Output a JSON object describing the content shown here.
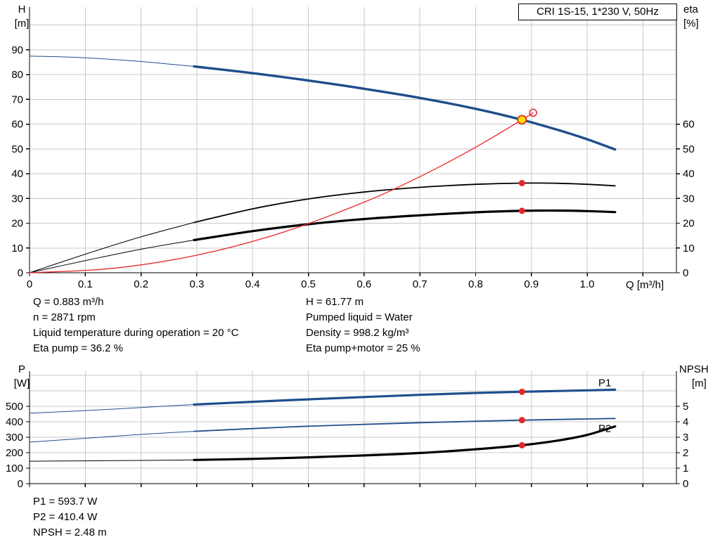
{
  "title_box": "CRI 1S-15, 1*230 V, 50Hz",
  "info": {
    "col1": [
      "Q = 0.883 m³/h",
      "n = 2871 rpm",
      "Liquid temperature during operation = 20 °C",
      "Eta pump = 36.2 %"
    ],
    "col2": [
      "H = 61.77 m",
      "Pumped liquid = Water",
      "Density = 998.2 kg/m³",
      "Eta pump+motor = 25 %"
    ]
  },
  "footer": [
    "P1 = 593.7 W",
    "P2 = 410.4 W",
    "NPSH = 2.48 m"
  ],
  "colors": {
    "curve_blue": "#1f4e8c",
    "marker_red": "#e8262a",
    "duty_yellow": "#ffe100",
    "grid": "#c8c8c8",
    "axis": "#000000"
  },
  "chart_data": [
    {
      "id": "top",
      "type": "line",
      "title": "CRI 1S-15, 1*230 V, 50Hz",
      "xlabel": "Q [m³/h]",
      "ylabel_left": [
        "H",
        "[m]"
      ],
      "ylabel_right": [
        "eta",
        "[%]"
      ],
      "xlim": [
        0,
        1.16
      ],
      "ylim_left": [
        0,
        107.3
      ],
      "ylim_right": [
        0,
        107.3
      ],
      "xticks": [
        "0",
        "0.1",
        "0.2",
        "0.3",
        "0.4",
        "0.5",
        "0.6",
        "0.7",
        "0.8",
        "0.9",
        "1.0"
      ],
      "xgrid": [
        0.1,
        0.2,
        0.3,
        0.4,
        0.5,
        0.6,
        0.7,
        0.8,
        0.9,
        1.0,
        1.1
      ],
      "yticks_left": [
        0,
        10,
        20,
        30,
        40,
        50,
        60,
        70,
        80,
        90
      ],
      "yticks_right": [
        0,
        10,
        20,
        30,
        40,
        50,
        60
      ],
      "ygrid": [
        10,
        20,
        30,
        40,
        50,
        60,
        70,
        80,
        90,
        100
      ],
      "series": [
        {
          "name": "head-curve",
          "label": "H",
          "axis": "left",
          "color": "#1f4e8c",
          "width": 3.4,
          "thin_until": 0.295,
          "thin_width": 1,
          "points": [
            [
              0,
              87.5
            ],
            [
              0.1,
              86.8
            ],
            [
              0.2,
              85.3
            ],
            [
              0.295,
              83.3
            ],
            [
              0.4,
              80.6
            ],
            [
              0.5,
              77.6
            ],
            [
              0.6,
              74.3
            ],
            [
              0.7,
              70.6
            ],
            [
              0.8,
              66.2
            ],
            [
              0.883,
              61.77
            ],
            [
              0.95,
              57.5
            ],
            [
              1.0,
              53.9
            ],
            [
              1.05,
              49.8
            ]
          ]
        },
        {
          "name": "eta-pump-curve",
          "label": "Eta pump",
          "axis": "right",
          "color": "#000000",
          "width": 1.8,
          "thin_until": 0.295,
          "thin_width": 1,
          "points": [
            [
              0,
              0
            ],
            [
              0.1,
              7.5
            ],
            [
              0.2,
              14.5
            ],
            [
              0.295,
              20.3
            ],
            [
              0.4,
              25.8
            ],
            [
              0.5,
              29.8
            ],
            [
              0.6,
              32.6
            ],
            [
              0.7,
              34.5
            ],
            [
              0.8,
              35.7
            ],
            [
              0.883,
              36.2
            ],
            [
              0.95,
              36.1
            ],
            [
              1.0,
              35.7
            ],
            [
              1.05,
              35.1
            ]
          ]
        },
        {
          "name": "eta-pump-motor-curve",
          "label": "Eta pump+motor",
          "axis": "right",
          "color": "#000000",
          "width": 3.2,
          "thin_until": 0.295,
          "thin_width": 1,
          "points": [
            [
              0,
              0
            ],
            [
              0.1,
              4.9
            ],
            [
              0.2,
              9.5
            ],
            [
              0.295,
              13.2
            ],
            [
              0.4,
              16.8
            ],
            [
              0.5,
              19.6
            ],
            [
              0.6,
              21.7
            ],
            [
              0.7,
              23.2
            ],
            [
              0.8,
              24.4
            ],
            [
              0.883,
              25.0
            ],
            [
              0.95,
              25.1
            ],
            [
              1.0,
              24.9
            ],
            [
              1.05,
              24.5
            ]
          ]
        },
        {
          "name": "system-curve",
          "label": "Duty curve",
          "axis": "left",
          "color": "#e8262a",
          "width": 1.3,
          "points": [
            [
              0,
              0
            ],
            [
              0.15,
              1.8
            ],
            [
              0.3,
              7.1
            ],
            [
              0.45,
              16.0
            ],
            [
              0.6,
              28.5
            ],
            [
              0.7,
              38.8
            ],
            [
              0.8,
              50.7
            ],
            [
              0.883,
              61.77
            ],
            [
              0.903,
              64.6
            ]
          ]
        }
      ],
      "markers": [
        {
          "name": "duty-point-marker",
          "x": 0.883,
          "y": 61.77,
          "axis": "left",
          "r": 6,
          "fill": "#ffe100",
          "stroke": "#e8262a",
          "stroke_width": 1.8
        },
        {
          "name": "rated-point-marker",
          "x": 0.903,
          "y": 64.6,
          "axis": "left",
          "r": 5,
          "fill": "none",
          "stroke": "#e8262a",
          "stroke_width": 1.5
        },
        {
          "name": "eta-pump-point",
          "x": 0.883,
          "y": 36.2,
          "axis": "right",
          "r": 4.5,
          "fill": "#e8262a",
          "stroke": "none",
          "stroke_width": 0
        },
        {
          "name": "eta-pump-motor-point",
          "x": 0.883,
          "y": 25,
          "axis": "right",
          "r": 4.5,
          "fill": "#e8262a",
          "stroke": "none",
          "stroke_width": 0
        }
      ],
      "labels": []
    },
    {
      "id": "bottom",
      "type": "line",
      "xlabel": "",
      "ylabel_left": [
        "P",
        "[W]"
      ],
      "ylabel_right": [
        "NPSH",
        "[m]"
      ],
      "xlim": [
        0,
        1.16
      ],
      "ylim_left": [
        0,
        727
      ],
      "ylim_right": [
        0,
        7.27
      ],
      "xticks": [],
      "xgrid": [
        0.1,
        0.2,
        0.3,
        0.4,
        0.5,
        0.6,
        0.7,
        0.8,
        0.9,
        1.0,
        1.1
      ],
      "yticks_left": [
        0,
        100,
        200,
        300,
        400,
        500
      ],
      "yticks_right": [
        0,
        1,
        2,
        3,
        4,
        5
      ],
      "ygrid": [
        100,
        200,
        300,
        400,
        500,
        600,
        700
      ],
      "series": [
        {
          "name": "p1-curve",
          "label": "P1",
          "axis": "left",
          "color": "#1f4e8c",
          "width": 3.2,
          "thin_until": 0.295,
          "thin_width": 1,
          "points": [
            [
              0,
              455
            ],
            [
              0.1,
              472
            ],
            [
              0.2,
              492
            ],
            [
              0.295,
              511
            ],
            [
              0.4,
              529
            ],
            [
              0.5,
              545
            ],
            [
              0.6,
              560
            ],
            [
              0.7,
              574
            ],
            [
              0.8,
              586
            ],
            [
              0.883,
              593.7
            ],
            [
              0.95,
              599
            ],
            [
              1.0,
              603
            ],
            [
              1.05,
              607
            ]
          ]
        },
        {
          "name": "p2-curve",
          "label": "P2",
          "axis": "left",
          "color": "#1f4e8c",
          "width": 1.8,
          "thin_until": 0.295,
          "thin_width": 1,
          "points": [
            [
              0,
              268
            ],
            [
              0.1,
              293
            ],
            [
              0.2,
              318
            ],
            [
              0.295,
              338
            ],
            [
              0.4,
              356
            ],
            [
              0.5,
              371
            ],
            [
              0.6,
              383
            ],
            [
              0.7,
              394
            ],
            [
              0.8,
              403
            ],
            [
              0.883,
              410.4
            ],
            [
              0.95,
              415
            ],
            [
              1.0,
              418
            ],
            [
              1.05,
              421
            ]
          ]
        },
        {
          "name": "npsh-curve",
          "label": "NPSH",
          "axis": "right",
          "color": "#000000",
          "width": 3.2,
          "thin_until": 0.295,
          "thin_width": 1,
          "points": [
            [
              0,
              1.45
            ],
            [
              0.1,
              1.47
            ],
            [
              0.2,
              1.5
            ],
            [
              0.295,
              1.53
            ],
            [
              0.4,
              1.6
            ],
            [
              0.5,
              1.7
            ],
            [
              0.6,
              1.82
            ],
            [
              0.7,
              1.98
            ],
            [
              0.8,
              2.22
            ],
            [
              0.883,
              2.48
            ],
            [
              0.95,
              2.8
            ],
            [
              1.0,
              3.15
            ],
            [
              1.05,
              3.7
            ]
          ]
        }
      ],
      "markers": [
        {
          "name": "p1-point",
          "x": 0.883,
          "y": 593.7,
          "axis": "left",
          "r": 4.5,
          "fill": "#e8262a",
          "stroke": "none",
          "stroke_width": 0
        },
        {
          "name": "p2-point",
          "x": 0.883,
          "y": 410.4,
          "axis": "left",
          "r": 4.5,
          "fill": "#e8262a",
          "stroke": "none",
          "stroke_width": 0
        },
        {
          "name": "npsh-point",
          "x": 0.883,
          "y": 2.48,
          "axis": "right",
          "r": 4.5,
          "fill": "#e8262a",
          "stroke": "none",
          "stroke_width": 0
        }
      ],
      "labels": [
        {
          "name": "p1-curve-label",
          "text": "P1",
          "x": 1.02,
          "y": 630,
          "axis": "left",
          "color": "#1f4e8c"
        },
        {
          "name": "p2-curve-label",
          "text": "P2",
          "x": 1.02,
          "y": 335,
          "axis": "left",
          "color": "#1f4e8c"
        }
      ]
    }
  ]
}
